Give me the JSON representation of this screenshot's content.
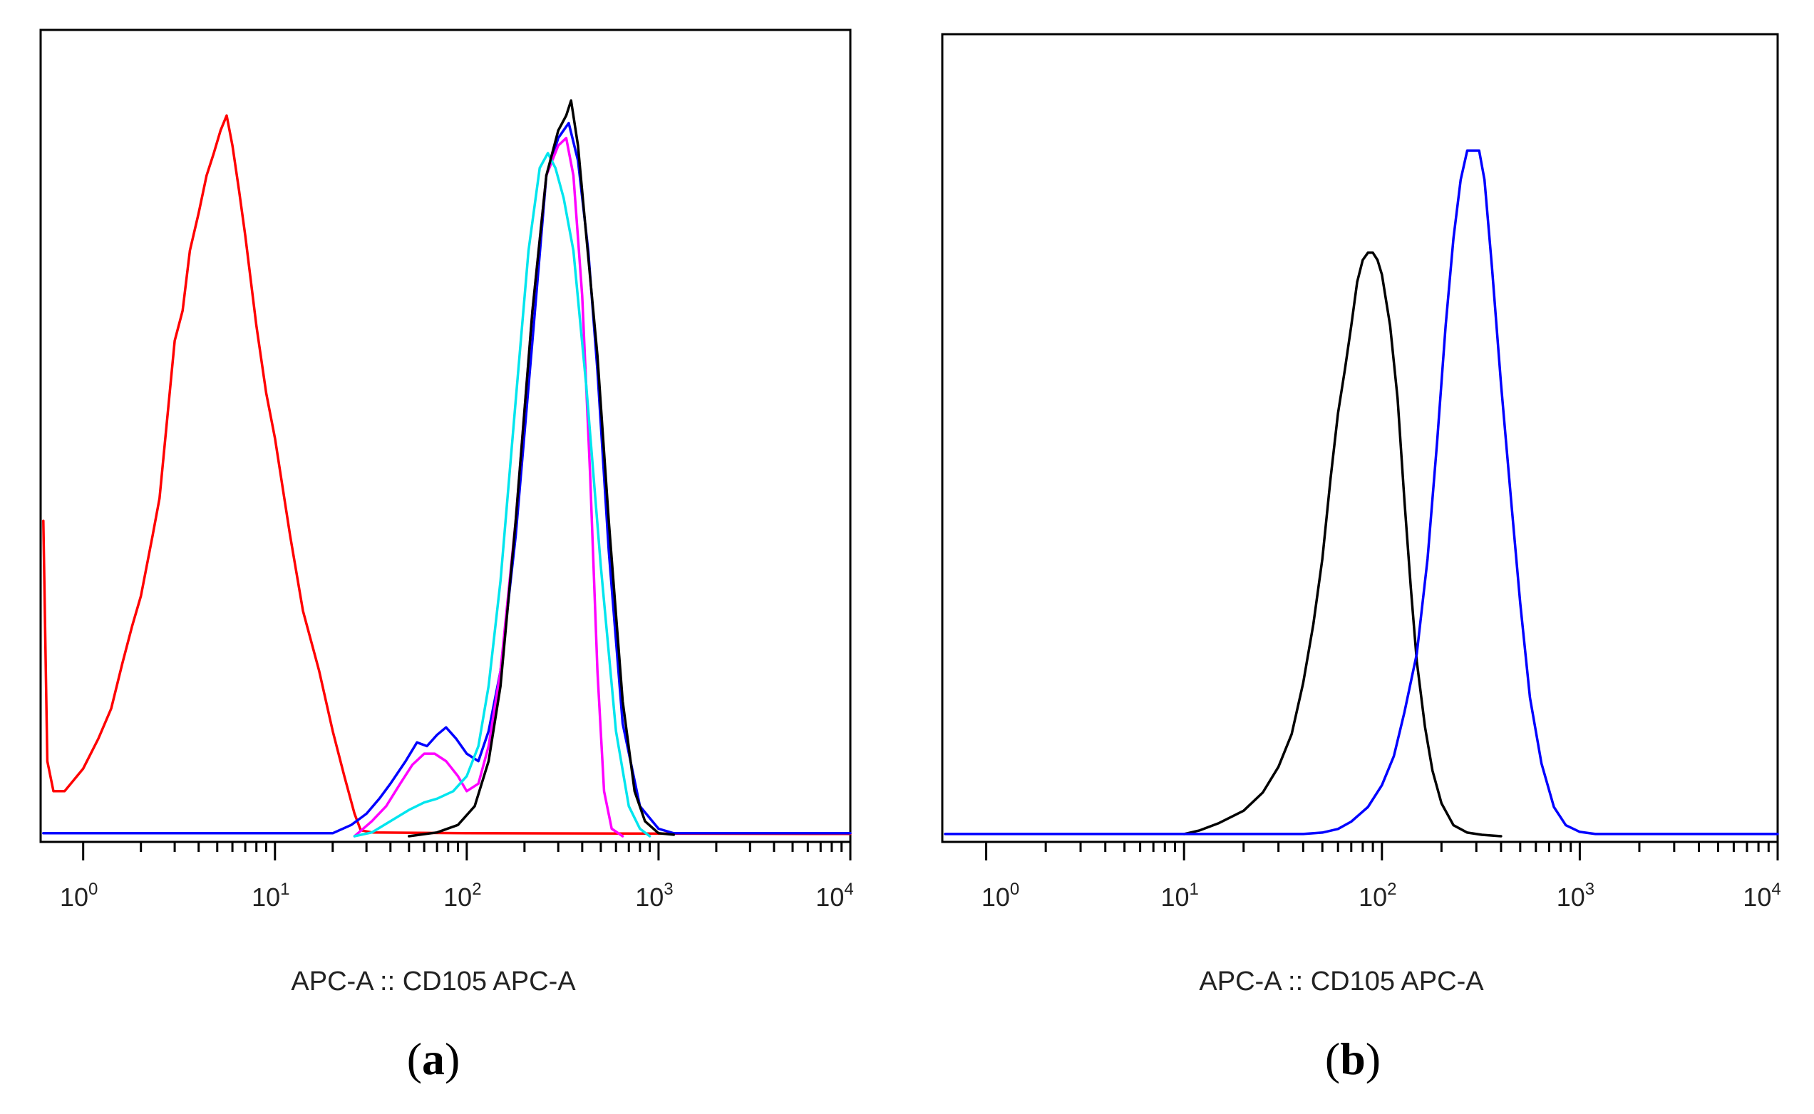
{
  "chart_data": [
    {
      "type": "line",
      "panel_label": "a",
      "xlabel": "APC-A :: CD105 APC-A",
      "ylabel": "",
      "xscale": "log",
      "xlim": [
        0.6,
        10000
      ],
      "ylim": [
        0,
        100
      ],
      "x_tick_labels": [
        {
          "base": "10",
          "exp": "0",
          "value": 1
        },
        {
          "base": "10",
          "exp": "1",
          "value": 10
        },
        {
          "base": "10",
          "exp": "2",
          "value": 100
        },
        {
          "base": "10",
          "exp": "3",
          "value": 1000
        },
        {
          "base": "10",
          "exp": "4",
          "value": 10000
        }
      ],
      "series": [
        {
          "name": "red",
          "color": "#ff0000",
          "points": [
            [
              0.62,
              42
            ],
            [
              0.65,
              10
            ],
            [
              0.7,
              6
            ],
            [
              0.8,
              6
            ],
            [
              1.0,
              9
            ],
            [
              1.2,
              13
            ],
            [
              1.4,
              17
            ],
            [
              1.6,
              23
            ],
            [
              1.8,
              28
            ],
            [
              2.0,
              32
            ],
            [
              2.3,
              40
            ],
            [
              2.5,
              45
            ],
            [
              2.8,
              58
            ],
            [
              3.0,
              66
            ],
            [
              3.3,
              70
            ],
            [
              3.6,
              78
            ],
            [
              4.0,
              83
            ],
            [
              4.4,
              88
            ],
            [
              4.8,
              91
            ],
            [
              5.2,
              94
            ],
            [
              5.6,
              96
            ],
            [
              6.0,
              92
            ],
            [
              6.5,
              86
            ],
            [
              7.0,
              80
            ],
            [
              8.0,
              68
            ],
            [
              9.0,
              59
            ],
            [
              10.0,
              53
            ],
            [
              12,
              40
            ],
            [
              14,
              30
            ],
            [
              17,
              22
            ],
            [
              20,
              14
            ],
            [
              23,
              8
            ],
            [
              26,
              3
            ],
            [
              28,
              0.8
            ],
            [
              32,
              0.5
            ],
            [
              100,
              0.4
            ],
            [
              10000,
              0.3
            ]
          ]
        },
        {
          "name": "blue",
          "color": "#0000ff",
          "points": [
            [
              0.62,
              0.4
            ],
            [
              20,
              0.4
            ],
            [
              25,
              1.5
            ],
            [
              30,
              3
            ],
            [
              35,
              5
            ],
            [
              40,
              7
            ],
            [
              48,
              10
            ],
            [
              55,
              12.5
            ],
            [
              62,
              12
            ],
            [
              70,
              13.5
            ],
            [
              78,
              14.5
            ],
            [
              88,
              13
            ],
            [
              100,
              11
            ],
            [
              115,
              10
            ],
            [
              130,
              14
            ],
            [
              150,
              22
            ],
            [
              180,
              40
            ],
            [
              220,
              66
            ],
            [
              260,
              88
            ],
            [
              300,
              93
            ],
            [
              340,
              95
            ],
            [
              380,
              90
            ],
            [
              430,
              78
            ],
            [
              480,
              62
            ],
            [
              550,
              38
            ],
            [
              650,
              15
            ],
            [
              800,
              4
            ],
            [
              1000,
              1
            ],
            [
              1200,
              0.4
            ],
            [
              10000,
              0.4
            ]
          ]
        },
        {
          "name": "magenta",
          "color": "#ff00ff",
          "points": [
            [
              26,
              0
            ],
            [
              32,
              2
            ],
            [
              38,
              4
            ],
            [
              45,
              7
            ],
            [
              52,
              9.5
            ],
            [
              60,
              11
            ],
            [
              68,
              11
            ],
            [
              78,
              10
            ],
            [
              90,
              8
            ],
            [
              100,
              6
            ],
            [
              115,
              7
            ],
            [
              130,
              12
            ],
            [
              150,
              22
            ],
            [
              180,
              42
            ],
            [
              220,
              70
            ],
            [
              260,
              88
            ],
            [
              300,
              92
            ],
            [
              330,
              93
            ],
            [
              360,
              88
            ],
            [
              400,
              72
            ],
            [
              440,
              48
            ],
            [
              480,
              22
            ],
            [
              520,
              6
            ],
            [
              570,
              1
            ],
            [
              650,
              0
            ]
          ]
        },
        {
          "name": "cyan",
          "color": "#00e5ee",
          "points": [
            [
              26,
              0
            ],
            [
              32,
              0.5
            ],
            [
              40,
              2
            ],
            [
              50,
              3.5
            ],
            [
              60,
              4.5
            ],
            [
              70,
              5
            ],
            [
              85,
              6
            ],
            [
              100,
              8
            ],
            [
              115,
              12
            ],
            [
              130,
              20
            ],
            [
              150,
              34
            ],
            [
              180,
              58
            ],
            [
              210,
              78
            ],
            [
              240,
              89
            ],
            [
              265,
              91
            ],
            [
              290,
              89
            ],
            [
              320,
              85
            ],
            [
              360,
              78
            ],
            [
              420,
              60
            ],
            [
              500,
              36
            ],
            [
              600,
              14
            ],
            [
              700,
              4
            ],
            [
              800,
              1
            ],
            [
              900,
              0
            ]
          ]
        },
        {
          "name": "black",
          "color": "#000000",
          "points": [
            [
              50,
              0
            ],
            [
              70,
              0.5
            ],
            [
              90,
              1.5
            ],
            [
              110,
              4
            ],
            [
              130,
              10
            ],
            [
              150,
              20
            ],
            [
              180,
              42
            ],
            [
              220,
              70
            ],
            [
              260,
              88
            ],
            [
              300,
              94
            ],
            [
              330,
              96
            ],
            [
              350,
              98
            ],
            [
              380,
              92
            ],
            [
              420,
              80
            ],
            [
              480,
              64
            ],
            [
              550,
              42
            ],
            [
              650,
              18
            ],
            [
              750,
              6
            ],
            [
              850,
              2
            ],
            [
              1000,
              0.4
            ],
            [
              1200,
              0.2
            ]
          ]
        }
      ]
    },
    {
      "type": "line",
      "panel_label": "b",
      "xlabel": "APC-A :: CD105 APC-A",
      "ylabel": "",
      "xscale": "log",
      "xlim": [
        0.6,
        10000
      ],
      "ylim": [
        0,
        100
      ],
      "x_tick_labels": [
        {
          "base": "10",
          "exp": "0",
          "value": 1
        },
        {
          "base": "10",
          "exp": "1",
          "value": 10
        },
        {
          "base": "10",
          "exp": "2",
          "value": 100
        },
        {
          "base": "10",
          "exp": "3",
          "value": 1000
        },
        {
          "base": "10",
          "exp": "4",
          "value": 10000
        }
      ],
      "series": [
        {
          "name": "black",
          "color": "#000000",
          "points": [
            [
              10,
              0.3
            ],
            [
              12,
              0.8
            ],
            [
              15,
              1.8
            ],
            [
              20,
              3.5
            ],
            [
              25,
              6
            ],
            [
              30,
              9.5
            ],
            [
              35,
              14
            ],
            [
              40,
              21
            ],
            [
              45,
              29
            ],
            [
              50,
              38
            ],
            [
              55,
              49
            ],
            [
              60,
              58
            ],
            [
              65,
              64
            ],
            [
              70,
              70
            ],
            [
              75,
              76
            ],
            [
              80,
              79
            ],
            [
              85,
              80
            ],
            [
              90,
              80
            ],
            [
              95,
              79
            ],
            [
              100,
              77
            ],
            [
              110,
              70
            ],
            [
              120,
              60
            ],
            [
              130,
              46
            ],
            [
              140,
              34
            ],
            [
              150,
              24
            ],
            [
              165,
              15
            ],
            [
              180,
              9
            ],
            [
              200,
              4.5
            ],
            [
              230,
              1.5
            ],
            [
              270,
              0.5
            ],
            [
              320,
              0.2
            ],
            [
              400,
              0
            ]
          ]
        },
        {
          "name": "blue",
          "color": "#0000ff",
          "points": [
            [
              0.62,
              0.3
            ],
            [
              40,
              0.3
            ],
            [
              50,
              0.5
            ],
            [
              60,
              1
            ],
            [
              70,
              2
            ],
            [
              85,
              4
            ],
            [
              100,
              7
            ],
            [
              115,
              11
            ],
            [
              130,
              17
            ],
            [
              150,
              25
            ],
            [
              170,
              38
            ],
            [
              190,
              54
            ],
            [
              210,
              70
            ],
            [
              230,
              82
            ],
            [
              250,
              90
            ],
            [
              270,
              94
            ],
            [
              290,
              94
            ],
            [
              310,
              94
            ],
            [
              330,
              90
            ],
            [
              360,
              78
            ],
            [
              400,
              62
            ],
            [
              450,
              46
            ],
            [
              500,
              32
            ],
            [
              560,
              19
            ],
            [
              640,
              10
            ],
            [
              740,
              4
            ],
            [
              850,
              1.5
            ],
            [
              1000,
              0.6
            ],
            [
              1200,
              0.3
            ],
            [
              10000,
              0.3
            ]
          ]
        }
      ]
    }
  ]
}
